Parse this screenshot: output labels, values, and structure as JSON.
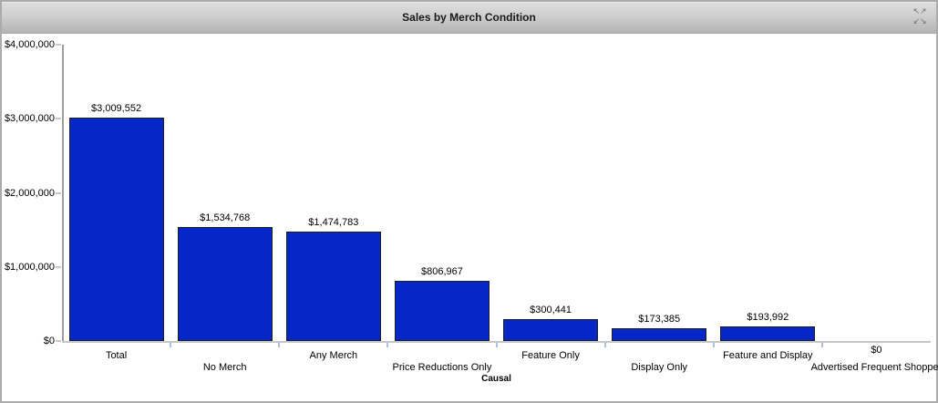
{
  "widget": {
    "title": "Sales by Merch Condition",
    "expand_icon": "expand-arrows",
    "expand_icon_glyph_top": "↖↗",
    "expand_icon_glyph_bottom": "↙↘"
  },
  "chart_data": {
    "type": "bar",
    "title": "Sales by Merch Condition",
    "xlabel": "Causal",
    "ylabel": "",
    "ylim": [
      0,
      4000000
    ],
    "grid": false,
    "legend": false,
    "y_tick_labels": [
      "$4,000,000",
      "$3,000,000",
      "$2,000,000",
      "$1,000,000",
      "$0"
    ],
    "y_tick_values": [
      4000000,
      3000000,
      2000000,
      1000000,
      0
    ],
    "categories": [
      "Total",
      "No Merch",
      "Any Merch",
      "Price Reductions Only",
      "Feature Only",
      "Display Only",
      "Feature and Display",
      "Advertised Frequent Shopper"
    ],
    "values": [
      3009552,
      1534768,
      1474783,
      806967,
      300441,
      173385,
      193992,
      0
    ],
    "value_labels": [
      "$3,009,552",
      "$1,534,768",
      "$1,474,783",
      "$806,967",
      "$300,441",
      "$173,385",
      "$193,992",
      "$0"
    ],
    "bar_color": "#0627c8",
    "bar_border_color": "#1f1f1f",
    "axis_color": "#9e9e9e",
    "baseline_color": "#c6c6c6",
    "x_tick_color": "#a8c2e0"
  }
}
